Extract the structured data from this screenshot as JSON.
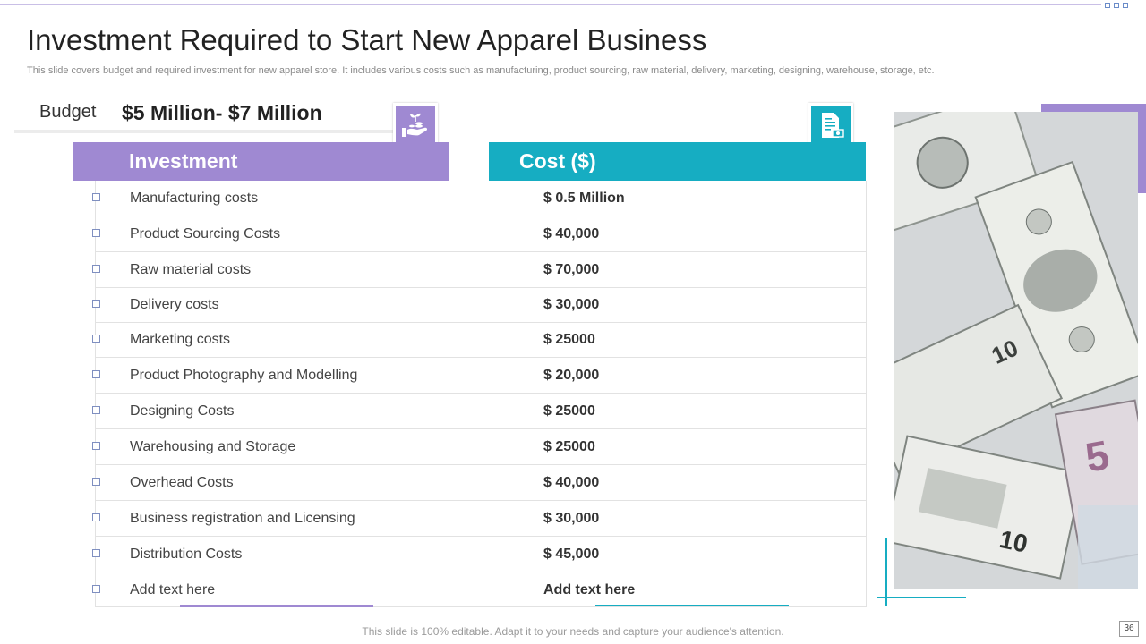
{
  "slide": {
    "title": "Investment Required to Start New Apparel  Business",
    "subtitle": "This slide covers budget and required investment for new apparel store. It includes various costs such as manufacturing, product sourcing, raw material, delivery, marketing, designing, warehouse, storage, etc.",
    "page_number": "36"
  },
  "budget": {
    "label": "Budget",
    "value": "$5 Million- $7 Million"
  },
  "icons": {
    "investment": "plant-in-hand-with-coins-icon",
    "cost": "document-with-money-icon"
  },
  "table": {
    "headers": {
      "investment": "Investment",
      "cost": "Cost ($)"
    },
    "rows": [
      {
        "item": "Manufacturing  costs",
        "cost": "$ 0.5 Million"
      },
      {
        "item": "Product Sourcing Costs",
        "cost": "$ 40,000"
      },
      {
        "item": "Raw material costs",
        "cost": "$ 70,000"
      },
      {
        "item": "Delivery costs",
        "cost": "$ 30,000"
      },
      {
        "item": "Marketing costs",
        "cost": "$ 25000"
      },
      {
        "item": "Product Photography and Modelling",
        "cost": "$ 20,000"
      },
      {
        "item": "Designing Costs",
        "cost": "$ 25000"
      },
      {
        "item": "Warehousing and Storage",
        "cost": "$ 25000"
      },
      {
        "item": "Overhead Costs",
        "cost": "$ 40,000"
      },
      {
        "item": "Business registration and Licensing",
        "cost": "$ 30,000"
      },
      {
        "item": "Distribution Costs",
        "cost": "$ 45,000"
      },
      {
        "item": "Add text here",
        "cost": "Add text here"
      }
    ]
  },
  "footer": {
    "text": "This slide is 100% editable. Adapt it to your needs and capture your audience's attention."
  },
  "colors": {
    "purple": "#9f89d2",
    "teal": "#16adc2"
  }
}
